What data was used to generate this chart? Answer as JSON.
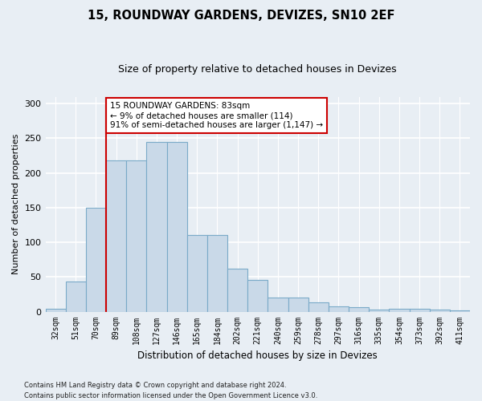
{
  "title1": "15, ROUNDWAY GARDENS, DEVIZES, SN10 2EF",
  "title2": "Size of property relative to detached houses in Devizes",
  "xlabel": "Distribution of detached houses by size in Devizes",
  "ylabel": "Number of detached properties",
  "categories": [
    "32sqm",
    "51sqm",
    "70sqm",
    "89sqm",
    "108sqm",
    "127sqm",
    "146sqm",
    "165sqm",
    "184sqm",
    "202sqm",
    "221sqm",
    "240sqm",
    "259sqm",
    "278sqm",
    "297sqm",
    "316sqm",
    "335sqm",
    "354sqm",
    "373sqm",
    "392sqm",
    "411sqm"
  ],
  "values": [
    4,
    43,
    150,
    218,
    218,
    245,
    245,
    110,
    110,
    62,
    46,
    20,
    20,
    13,
    8,
    7,
    3,
    4,
    4,
    3,
    2
  ],
  "bar_color": "#c9d9e8",
  "bar_edge_color": "#7aaac8",
  "vline_x_idx": 2.5,
  "vline_color": "#cc0000",
  "annotation_text": "15 ROUNDWAY GARDENS: 83sqm\n← 9% of detached houses are smaller (114)\n91% of semi-detached houses are larger (1,147) →",
  "annotation_box_color": "#ffffff",
  "annotation_box_edge": "#cc0000",
  "ylim": [
    0,
    310
  ],
  "yticks": [
    0,
    50,
    100,
    150,
    200,
    250,
    300
  ],
  "footer1": "Contains HM Land Registry data © Crown copyright and database right 2024.",
  "footer2": "Contains public sector information licensed under the Open Government Licence v3.0.",
  "bg_color": "#e8eef4",
  "grid_color": "#ffffff",
  "title1_fontsize": 10.5,
  "title2_fontsize": 9,
  "ylabel_fontsize": 8,
  "xlabel_fontsize": 8.5,
  "tick_fontsize": 7,
  "ytick_fontsize": 8,
  "annot_fontsize": 7.5,
  "footer_fontsize": 6
}
